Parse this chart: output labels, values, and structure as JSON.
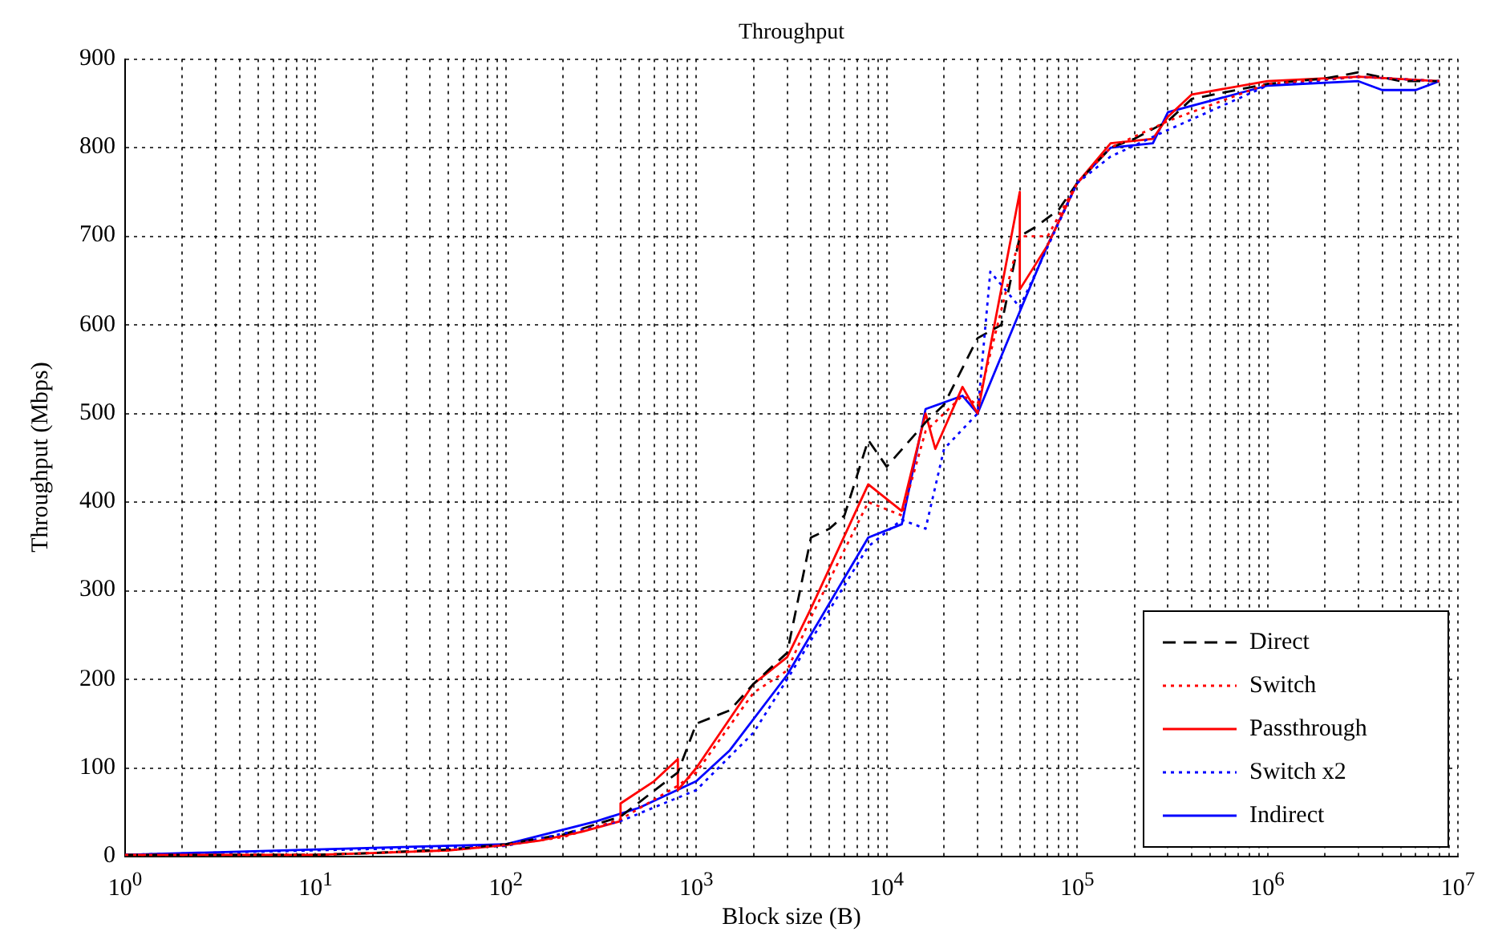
{
  "chart_data": {
    "type": "line",
    "title": "Throughput",
    "xlabel": "Block size (B)",
    "ylabel": "Throughput (Mbps)",
    "log": "x",
    "grid": true,
    "legend": "bottom right",
    "marker": "none",
    "xlim": [
      1,
      10000000
    ],
    "xticks": [
      {
        "value": 1,
        "label": "10$^{0}$"
      },
      {
        "value": 10,
        "label": "10$^{1}$"
      },
      {
        "value": 100,
        "label": "10$^{2}$"
      },
      {
        "value": 1000,
        "label": "10$^{3}$"
      },
      {
        "value": 10000,
        "label": "10$^{4}$"
      },
      {
        "value": 100000,
        "label": "10$^{5}$"
      },
      {
        "value": 1000000,
        "label": "10$^{6}$"
      },
      {
        "value": 10000000,
        "label": "10$^{7}$"
      }
    ],
    "ylim": [
      0,
      900
    ],
    "yticks": [
      0,
      100,
      200,
      300,
      400,
      500,
      600,
      700,
      800,
      900
    ],
    "series": [
      {
        "name": "Direct",
        "color": "#000000",
        "line_style": "dashed",
        "x": [
          1,
          10,
          20,
          50,
          100,
          200,
          400,
          800,
          1000,
          1500,
          2000,
          3000,
          4000,
          5000,
          6000,
          8000,
          10000,
          16000,
          20000,
          30000,
          40000,
          50000,
          60000,
          80000,
          100000,
          150000,
          200000,
          300000,
          400000,
          1000000,
          2000000,
          3000000,
          5000000,
          8000000
        ],
        "values": [
          2,
          2,
          4,
          8,
          14,
          25,
          45,
          95,
          150,
          165,
          195,
          230,
          360,
          370,
          385,
          470,
          440,
          490,
          510,
          585,
          600,
          700,
          710,
          730,
          760,
          800,
          810,
          830,
          855,
          872,
          878,
          885,
          875,
          875
        ]
      },
      {
        "name": "Switch",
        "color": "#ff0000",
        "line_style": "dotted",
        "x": [
          1,
          10,
          20,
          50,
          100,
          200,
          400,
          800,
          1000,
          2000,
          3000,
          4000,
          8000,
          12000,
          16000,
          25000,
          30000,
          50000,
          70000,
          100000,
          150000,
          300000,
          1000000,
          3000000,
          8000000
        ],
        "values": [
          2,
          2,
          4,
          7,
          13,
          22,
          42,
          80,
          95,
          185,
          210,
          270,
          400,
          385,
          480,
          520,
          510,
          700,
          700,
          760,
          800,
          830,
          872,
          880,
          875
        ]
      },
      {
        "name": "Passthrough",
        "color": "#ff0000",
        "line_style": "solid",
        "x": [
          1,
          10,
          20,
          50,
          100,
          150,
          250,
          400,
          400,
          600,
          800,
          800,
          1000,
          2000,
          3000,
          4000,
          8000,
          12000,
          16000,
          18000,
          25000,
          30000,
          50000,
          50000,
          70000,
          100000,
          150000,
          250000,
          300000,
          400000,
          1000000,
          3000000,
          8000000
        ],
        "values": [
          2,
          2,
          4,
          7,
          13,
          18,
          28,
          40,
          60,
          85,
          110,
          75,
          100,
          195,
          225,
          280,
          420,
          390,
          500,
          460,
          530,
          500,
          750,
          640,
          690,
          760,
          805,
          810,
          835,
          860,
          875,
          880,
          875
        ]
      },
      {
        "name": "Switch x2",
        "color": "#0000ff",
        "line_style": "dotted",
        "x": [
          1,
          100,
          400,
          1000,
          2000,
          3000,
          8000,
          12000,
          16000,
          20000,
          30000,
          35000,
          50000,
          100000,
          150000,
          300000,
          1000000,
          3000000,
          8000000
        ],
        "values": [
          2,
          12,
          40,
          75,
          140,
          200,
          350,
          380,
          370,
          460,
          500,
          660,
          620,
          760,
          790,
          820,
          870,
          880,
          875
        ]
      },
      {
        "name": "Indirect",
        "color": "#0000ff",
        "line_style": "solid",
        "x": [
          1,
          100,
          300,
          500,
          1000,
          1500,
          3000,
          8000,
          12000,
          16000,
          25000,
          30000,
          50000,
          70000,
          100000,
          150000,
          250000,
          300000,
          1000000,
          3000000,
          4000000,
          6000000,
          8000000
        ],
        "values": [
          2,
          14,
          40,
          55,
          85,
          120,
          205,
          360,
          375,
          505,
          520,
          500,
          615,
          690,
          760,
          800,
          805,
          840,
          870,
          875,
          865,
          865,
          875
        ]
      }
    ]
  }
}
